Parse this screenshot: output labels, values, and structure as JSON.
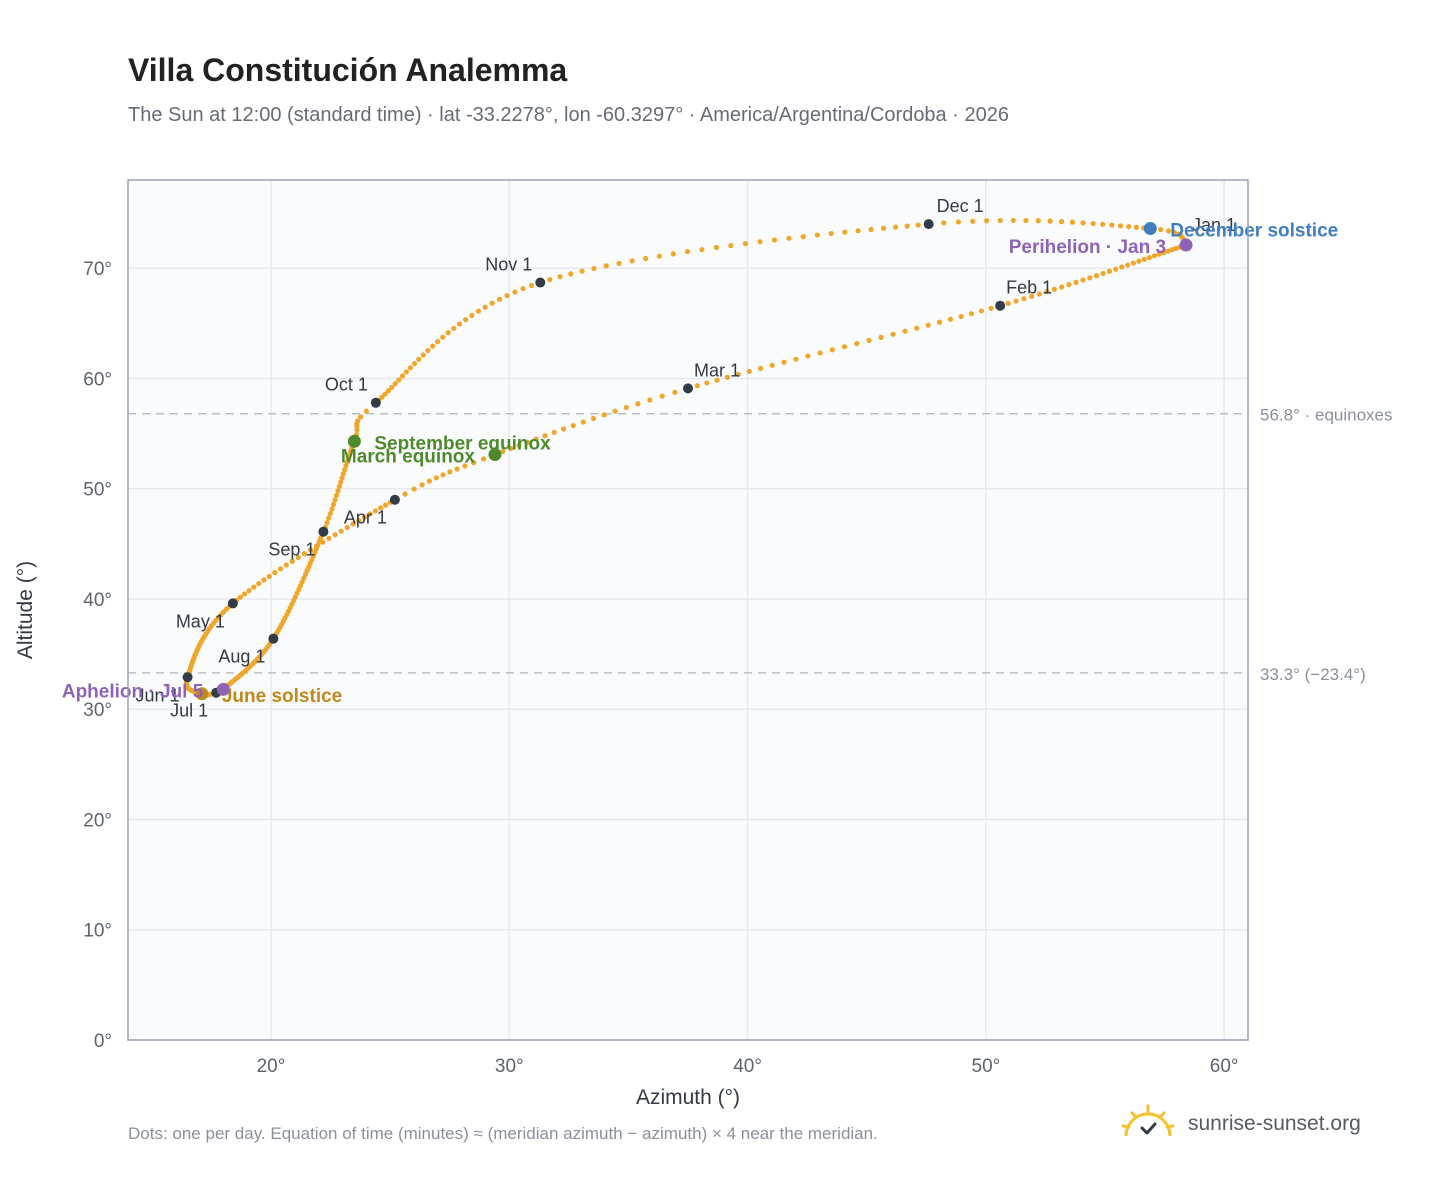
{
  "title": "Villa Constitución Analemma",
  "subtitle": "The Sun at 12:00 (standard time) · lat -33.2278°, lon -60.3297° · America/Argentina/Cordoba · 2026",
  "footnote": "Dots: one per day. Equation of time (minutes) ≈ (meridian azimuth − azimuth) × 4 near the meridian.",
  "brand": {
    "text": "sunrise-sunset.org",
    "logo_icon": "sun-logo-icon"
  },
  "colors": {
    "path": "#f0a62a",
    "month_marker": "#333b47",
    "equinox": "#4e8a2c",
    "december_solstice": "#3f7fc0",
    "june_solstice": "#c08a1a",
    "perihelion_aphelion": "#8e63b5",
    "reference_line": "#b8bfc8",
    "plot_background": "#f9fbfd",
    "grid": "#e6e9ee",
    "axis_border": "#9aa4b2"
  },
  "chart_data": {
    "type": "scatter",
    "xlabel": "Azimuth (°)",
    "ylabel": "Altitude (°)",
    "xlim": [
      14,
      61
    ],
    "ylim": [
      0,
      78
    ],
    "x_ticks": [
      20,
      30,
      40,
      50,
      60
    ],
    "x_tick_labels": [
      "20°",
      "30°",
      "40°",
      "50°",
      "60°"
    ],
    "y_ticks": [
      0,
      10,
      20,
      30,
      40,
      50,
      60,
      70
    ],
    "y_tick_labels": [
      "0°",
      "10°",
      "20°",
      "30°",
      "40°",
      "50°",
      "60°",
      "70°"
    ],
    "grid": true,
    "analemma_path": {
      "description_points": "one dot per day, interpolated through the anchor points below",
      "anchors": [
        {
          "date": "Jan 1",
          "azimuth": 58.4,
          "altitude": 72.1
        },
        {
          "date": "Feb 1",
          "azimuth": 50.6,
          "altitude": 66.6
        },
        {
          "date": "Mar 1",
          "azimuth": 37.5,
          "altitude": 59.1
        },
        {
          "date": "Mar 20",
          "azimuth": 29.4,
          "altitude": 53.1
        },
        {
          "date": "Apr 1",
          "azimuth": 25.2,
          "altitude": 49.0
        },
        {
          "date": "May 1",
          "azimuth": 18.4,
          "altitude": 39.6
        },
        {
          "date": "Jun 1",
          "azimuth": 16.5,
          "altitude": 32.9
        },
        {
          "date": "Jun 21",
          "azimuth": 17.1,
          "altitude": 31.4
        },
        {
          "date": "Jul 1",
          "azimuth": 17.7,
          "altitude": 31.5
        },
        {
          "date": "Jul 5",
          "azimuth": 18.0,
          "altitude": 31.8
        },
        {
          "date": "Aug 1",
          "azimuth": 20.1,
          "altitude": 36.4
        },
        {
          "date": "Sep 1",
          "azimuth": 22.2,
          "altitude": 46.1
        },
        {
          "date": "Sep 23",
          "azimuth": 23.5,
          "altitude": 54.3
        },
        {
          "date": "Oct 1",
          "azimuth": 24.4,
          "altitude": 57.8
        },
        {
          "date": "Nov 1",
          "azimuth": 31.3,
          "altitude": 68.7
        },
        {
          "date": "Dec 1",
          "azimuth": 47.6,
          "altitude": 74.0
        },
        {
          "date": "Dec 21",
          "azimuth": 56.9,
          "altitude": 73.6
        },
        {
          "date": "Jan 1",
          "azimuth": 58.4,
          "altitude": 72.1
        }
      ]
    },
    "month_markers": [
      {
        "label": "Jan 1",
        "azimuth": 58.4,
        "altitude": 72.1,
        "anchor": "start",
        "dx": 6,
        "dy": -14
      },
      {
        "label": "Feb 1",
        "azimuth": 50.6,
        "altitude": 66.6,
        "anchor": "start",
        "dx": 6,
        "dy": -12
      },
      {
        "label": "Mar 1",
        "azimuth": 37.5,
        "altitude": 59.1,
        "anchor": "start",
        "dx": 6,
        "dy": -12
      },
      {
        "label": "Apr 1",
        "azimuth": 25.2,
        "altitude": 49.0,
        "anchor": "end",
        "dx": -8,
        "dy": 24
      },
      {
        "label": "May 1",
        "azimuth": 18.4,
        "altitude": 39.6,
        "anchor": "end",
        "dx": -8,
        "dy": 24
      },
      {
        "label": "Jun 1",
        "azimuth": 16.5,
        "altitude": 32.9,
        "anchor": "end",
        "dx": -8,
        "dy": 24
      },
      {
        "label": "Jul 1",
        "azimuth": 17.7,
        "altitude": 31.5,
        "anchor": "end",
        "dx": -8,
        "dy": 24
      },
      {
        "label": "Aug 1",
        "azimuth": 20.1,
        "altitude": 36.4,
        "anchor": "end",
        "dx": -8,
        "dy": 24
      },
      {
        "label": "Sep 1",
        "azimuth": 22.2,
        "altitude": 46.1,
        "anchor": "end",
        "dx": -8,
        "dy": 24
      },
      {
        "label": "Oct 1",
        "azimuth": 24.4,
        "altitude": 57.8,
        "anchor": "end",
        "dx": -8,
        "dy": -12
      },
      {
        "label": "Nov 1",
        "azimuth": 31.3,
        "altitude": 68.7,
        "anchor": "end",
        "dx": -8,
        "dy": -12
      },
      {
        "label": "Dec 1",
        "azimuth": 47.6,
        "altitude": 74.0,
        "anchor": "start",
        "dx": 8,
        "dy": -12
      }
    ],
    "special_points": [
      {
        "label": "March equinox",
        "azimuth": 29.4,
        "altitude": 53.1,
        "color_key": "equinox",
        "anchor": "end",
        "dx": -20,
        "dy": 8
      },
      {
        "label": "September equinox",
        "azimuth": 23.5,
        "altitude": 54.3,
        "color_key": "equinox",
        "anchor": "start",
        "dx": 20,
        "dy": 8
      },
      {
        "label": "December solstice",
        "azimuth": 56.9,
        "altitude": 73.6,
        "color_key": "december_solstice",
        "anchor": "start",
        "dx": 20,
        "dy": 8
      },
      {
        "label": "June solstice",
        "azimuth": 17.1,
        "altitude": 31.4,
        "color_key": "june_solstice",
        "anchor": "start",
        "dx": 20,
        "dy": 8
      },
      {
        "label": "Perihelion · Jan 3",
        "azimuth": 58.4,
        "altitude": 72.1,
        "color_key": "perihelion_aphelion",
        "anchor": "end",
        "dx": -20,
        "dy": 8
      },
      {
        "label": "Aphelion · Jul 5",
        "azimuth": 18.0,
        "altitude": 31.8,
        "color_key": "perihelion_aphelion",
        "anchor": "end",
        "dx": -20,
        "dy": 8
      }
    ],
    "reference_lines": [
      {
        "altitude": 56.8,
        "label": "56.8° · equinoxes"
      },
      {
        "altitude": 33.3,
        "label": "33.3° (−23.4°)"
      }
    ]
  }
}
